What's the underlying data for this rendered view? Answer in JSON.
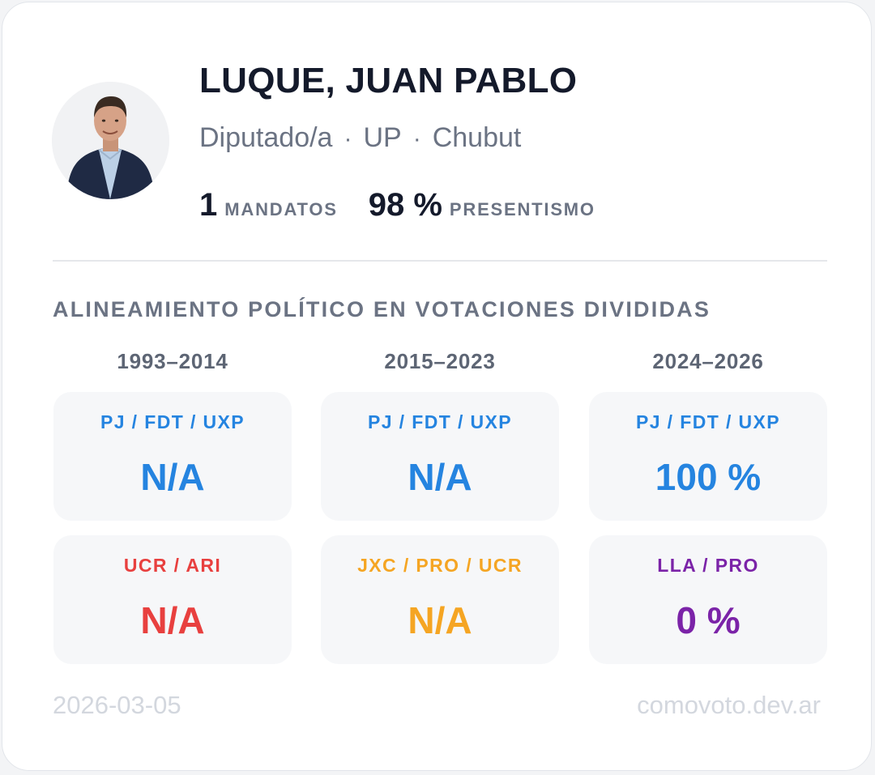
{
  "profile": {
    "name": "LUQUE, JUAN PABLO",
    "role": "Diputado/a",
    "party": "UP",
    "province": "Chubut",
    "separator": "·"
  },
  "stats": {
    "mandates_value": "1",
    "mandates_label": "MANDATOS",
    "attendance_value": "98 %",
    "attendance_label": "PRESENTISMO"
  },
  "alignment": {
    "title": "ALINEAMIENTO POLÍTICO EN VOTACIONES DIVIDIDAS",
    "periods": [
      "1993–2014",
      "2015–2023",
      "2024–2026"
    ],
    "rows": [
      [
        {
          "party": "PJ / FDT / UXP",
          "value": "N/A",
          "color": "#2584e0"
        },
        {
          "party": "PJ / FDT / UXP",
          "value": "N/A",
          "color": "#2584e0"
        },
        {
          "party": "PJ / FDT / UXP",
          "value": "100 %",
          "color": "#2584e0"
        }
      ],
      [
        {
          "party": "UCR / ARI",
          "value": "N/A",
          "color": "#e8403f"
        },
        {
          "party": "JXC / PRO / UCR",
          "value": "N/A",
          "color": "#f5a523"
        },
        {
          "party": "LLA / PRO",
          "value": "0 %",
          "color": "#7b23a8"
        }
      ]
    ]
  },
  "footer": {
    "date": "2026-03-05",
    "site": "comovoto.dev.ar"
  }
}
